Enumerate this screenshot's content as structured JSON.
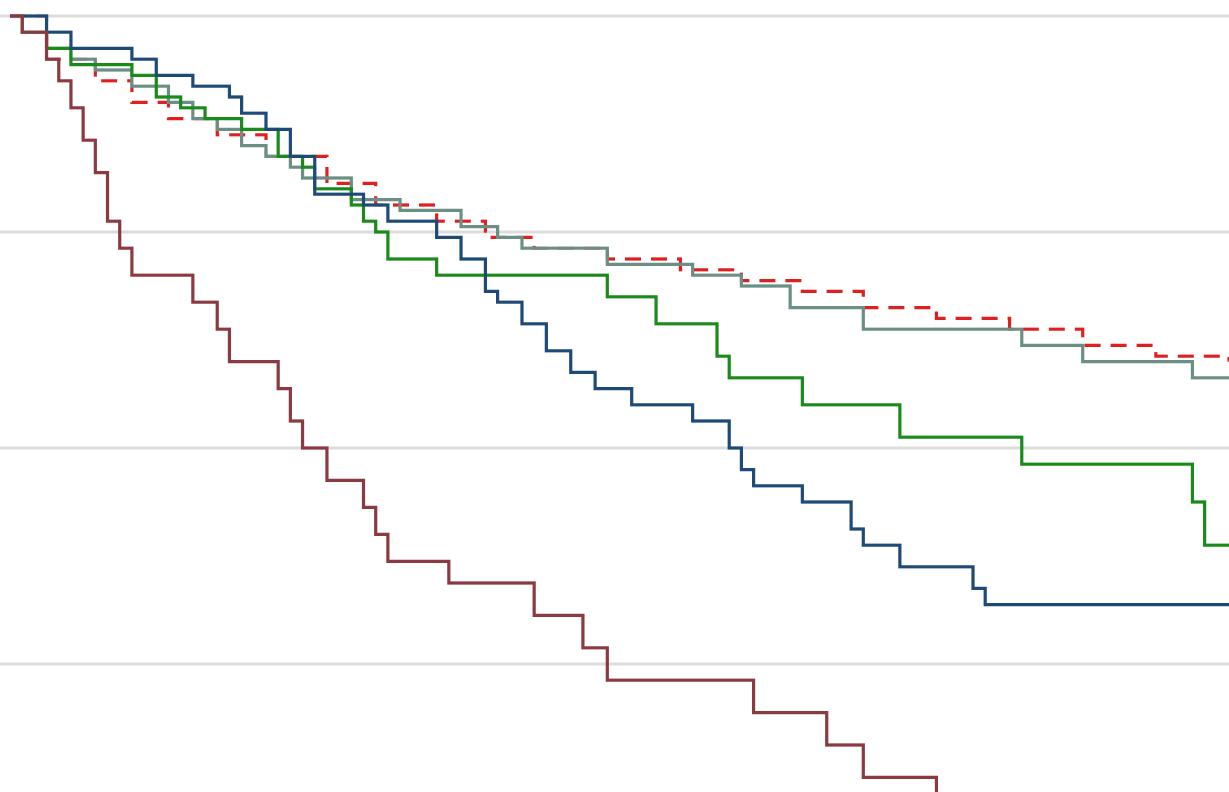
{
  "chart_data": {
    "type": "line",
    "step": true,
    "title": "",
    "xlabel": "",
    "ylabel": "",
    "grid": true,
    "xlim": [
      0,
      100
    ],
    "ylim": [
      0.35,
      1.05
    ],
    "gridlines": [
      1.0,
      0.8,
      0.6,
      0.4
    ],
    "series": [
      {
        "color": "#e02020",
        "dash": true,
        "points": [
          [
            0,
            1.0
          ],
          [
            3,
            0.96
          ],
          [
            7,
            0.94
          ],
          [
            10,
            0.92
          ],
          [
            13,
            0.905
          ],
          [
            17,
            0.89
          ],
          [
            21,
            0.87
          ],
          [
            26,
            0.845
          ],
          [
            30,
            0.825
          ],
          [
            35,
            0.81
          ],
          [
            39,
            0.795
          ],
          [
            43,
            0.785
          ],
          [
            49,
            0.775
          ],
          [
            55,
            0.765
          ],
          [
            60,
            0.755
          ],
          [
            65,
            0.745
          ],
          [
            70,
            0.73
          ],
          [
            76,
            0.72
          ],
          [
            82,
            0.71
          ],
          [
            88,
            0.695
          ],
          [
            94,
            0.685
          ],
          [
            100,
            0.68
          ]
        ]
      },
      {
        "color": "#6b8f85",
        "dash": false,
        "points": [
          [
            0,
            1.0
          ],
          [
            1,
            0.985
          ],
          [
            3,
            0.97
          ],
          [
            5,
            0.96
          ],
          [
            7,
            0.95
          ],
          [
            10,
            0.935
          ],
          [
            13,
            0.92
          ],
          [
            15,
            0.905
          ],
          [
            17,
            0.895
          ],
          [
            19,
            0.88
          ],
          [
            21,
            0.87
          ],
          [
            23,
            0.86
          ],
          [
            24,
            0.85
          ],
          [
            28,
            0.83
          ],
          [
            32,
            0.82
          ],
          [
            37,
            0.805
          ],
          [
            40,
            0.795
          ],
          [
            42,
            0.785
          ],
          [
            49,
            0.77
          ],
          [
            56,
            0.76
          ],
          [
            60,
            0.75
          ],
          [
            64,
            0.73
          ],
          [
            70,
            0.71
          ],
          [
            83,
            0.695
          ],
          [
            88,
            0.68
          ],
          [
            97,
            0.665
          ],
          [
            100,
            0.665
          ]
        ]
      },
      {
        "color": "#1a8a1a",
        "dash": false,
        "points": [
          [
            0,
            1.0
          ],
          [
            1,
            0.985
          ],
          [
            3,
            0.97
          ],
          [
            5,
            0.955
          ],
          [
            10,
            0.945
          ],
          [
            12,
            0.925
          ],
          [
            14,
            0.915
          ],
          [
            16,
            0.905
          ],
          [
            19,
            0.895
          ],
          [
            22,
            0.87
          ],
          [
            24,
            0.86
          ],
          [
            25,
            0.84
          ],
          [
            28,
            0.825
          ],
          [
            29,
            0.81
          ],
          [
            30,
            0.8
          ],
          [
            31,
            0.775
          ],
          [
            35,
            0.76
          ],
          [
            49,
            0.74
          ],
          [
            53,
            0.715
          ],
          [
            58,
            0.685
          ],
          [
            59,
            0.665
          ],
          [
            65,
            0.64
          ],
          [
            73,
            0.61
          ],
          [
            83,
            0.585
          ],
          [
            97,
            0.55
          ],
          [
            98,
            0.51
          ],
          [
            100,
            0.51
          ]
        ]
      },
      {
        "color": "#1e4a78",
        "dash": false,
        "points": [
          [
            0,
            1.0
          ],
          [
            3,
            0.985
          ],
          [
            5,
            0.97
          ],
          [
            10,
            0.96
          ],
          [
            12,
            0.945
          ],
          [
            15,
            0.935
          ],
          [
            18,
            0.925
          ],
          [
            19,
            0.91
          ],
          [
            21,
            0.895
          ],
          [
            23,
            0.87
          ],
          [
            25,
            0.835
          ],
          [
            29,
            0.825
          ],
          [
            31,
            0.81
          ],
          [
            35,
            0.795
          ],
          [
            37,
            0.775
          ],
          [
            39,
            0.745
          ],
          [
            40,
            0.735
          ],
          [
            42,
            0.715
          ],
          [
            44,
            0.69
          ],
          [
            46,
            0.67
          ],
          [
            48,
            0.655
          ],
          [
            51,
            0.64
          ],
          [
            56,
            0.625
          ],
          [
            59,
            0.6
          ],
          [
            60,
            0.58
          ],
          [
            61,
            0.565
          ],
          [
            65,
            0.55
          ],
          [
            69,
            0.525
          ],
          [
            70,
            0.51
          ],
          [
            73,
            0.49
          ],
          [
            79,
            0.47
          ],
          [
            80,
            0.455
          ],
          [
            100,
            0.455
          ]
        ]
      },
      {
        "color": "#8b3a42",
        "dash": false,
        "points": [
          [
            0,
            1.0
          ],
          [
            1,
            0.985
          ],
          [
            3,
            0.96
          ],
          [
            4,
            0.94
          ],
          [
            5,
            0.915
          ],
          [
            6,
            0.885
          ],
          [
            7,
            0.855
          ],
          [
            8,
            0.81
          ],
          [
            9,
            0.785
          ],
          [
            10,
            0.76
          ],
          [
            15,
            0.735
          ],
          [
            17,
            0.71
          ],
          [
            18,
            0.68
          ],
          [
            22,
            0.655
          ],
          [
            23,
            0.625
          ],
          [
            24,
            0.6
          ],
          [
            26,
            0.57
          ],
          [
            29,
            0.545
          ],
          [
            30,
            0.52
          ],
          [
            31,
            0.495
          ],
          [
            36,
            0.475
          ],
          [
            43,
            0.445
          ],
          [
            47,
            0.415
          ],
          [
            49,
            0.385
          ],
          [
            61,
            0.355
          ],
          [
            67,
            0.325
          ],
          [
            70,
            0.295
          ],
          [
            76,
            0.27
          ],
          [
            80,
            0.268
          ]
        ]
      }
    ]
  }
}
